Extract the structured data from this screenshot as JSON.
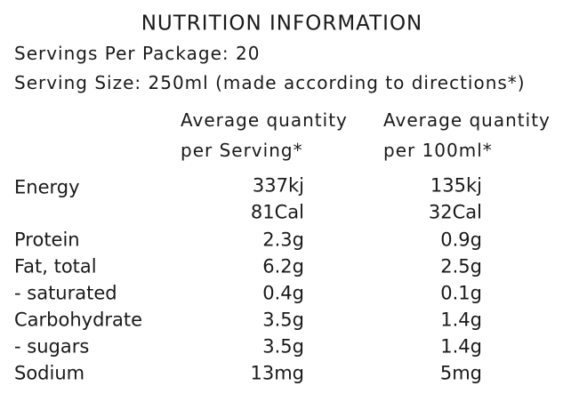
{
  "title": "NUTRITION INFORMATION",
  "servings_per_package": "Servings Per Package: 20",
  "serving_size": "Serving Size: 250ml (made according to directions*)",
  "table": {
    "headers": [
      [
        "Average quantity",
        "per Serving*"
      ],
      [
        "Average quantity",
        "per 100ml*"
      ]
    ],
    "rows": [
      {
        "label": "Energy",
        "per_serving": [
          "337kj",
          "81Cal"
        ],
        "per_100ml": [
          "135kj",
          "32Cal"
        ]
      },
      {
        "label": "Protein",
        "per_serving": [
          "2.3g"
        ],
        "per_100ml": [
          "0.9g"
        ]
      },
      {
        "label": "Fat, total",
        "per_serving": [
          "6.2g"
        ],
        "per_100ml": [
          "2.5g"
        ]
      },
      {
        "label": "- saturated",
        "per_serving": [
          "0.4g"
        ],
        "per_100ml": [
          "0.1g"
        ]
      },
      {
        "label": "Carbohydrate",
        "per_serving": [
          "3.5g"
        ],
        "per_100ml": [
          "1.4g"
        ]
      },
      {
        "label": "- sugars",
        "per_serving": [
          "3.5g"
        ],
        "per_100ml": [
          "1.4g"
        ]
      },
      {
        "label": "Sodium",
        "per_serving": [
          "13mg"
        ],
        "per_100ml": [
          "5mg"
        ]
      }
    ]
  }
}
